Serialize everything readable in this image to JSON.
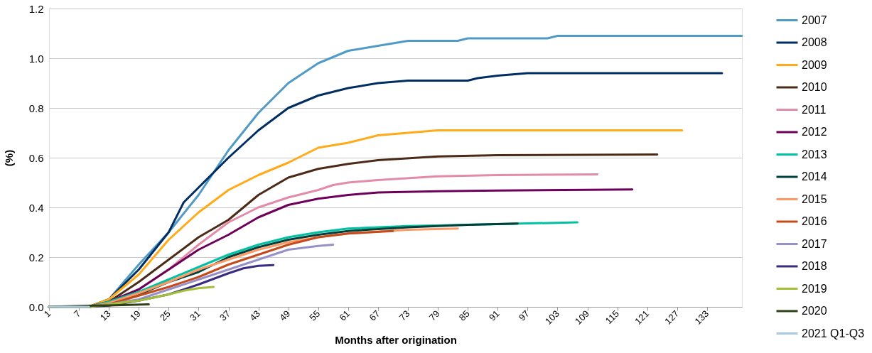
{
  "chart_data": {
    "type": "line",
    "xlabel": "Months after origination",
    "ylabel": "(%)",
    "xlim": [
      1,
      140
    ],
    "xticks": [
      1,
      7,
      13,
      19,
      25,
      31,
      37,
      43,
      49,
      55,
      61,
      67,
      73,
      79,
      85,
      91,
      97,
      103,
      109,
      115,
      121,
      127,
      133
    ],
    "ylim": [
      0,
      1.2
    ],
    "yticks": [
      {
        "value": 0,
        "label": "0.0"
      },
      {
        "value": 0.2,
        "label": "0.2"
      },
      {
        "value": 0.4,
        "label": "0.4"
      },
      {
        "value": 0.6,
        "label": "0.6"
      },
      {
        "value": 0.8,
        "label": "0.8"
      },
      {
        "value": 1.0,
        "label": "1.0"
      },
      {
        "value": 1.2,
        "label": "1.2"
      }
    ],
    "grid": "y",
    "legend": "right",
    "marker": "none",
    "line_style": "solid",
    "series": [
      {
        "name": "2007",
        "color": "#4f9bc6",
        "x": [
          1,
          9,
          13,
          19,
          25,
          31,
          37,
          43,
          49,
          55,
          61,
          67,
          73,
          83,
          85,
          101,
          103,
          140
        ],
        "values": [
          0,
          0,
          0.03,
          0.17,
          0.3,
          0.45,
          0.63,
          0.78,
          0.9,
          0.98,
          1.03,
          1.05,
          1.07,
          1.07,
          1.08,
          1.08,
          1.09,
          1.09
        ]
      },
      {
        "name": "2008",
        "color": "#002d62",
        "x": [
          1,
          9,
          13,
          19,
          25,
          28,
          31,
          34,
          37,
          43,
          49,
          55,
          61,
          67,
          73,
          85,
          87,
          91,
          97,
          136
        ],
        "values": [
          0,
          0,
          0.03,
          0.15,
          0.3,
          0.42,
          0.48,
          0.54,
          0.6,
          0.71,
          0.8,
          0.85,
          0.88,
          0.9,
          0.91,
          0.91,
          0.92,
          0.93,
          0.94,
          0.94
        ]
      },
      {
        "name": "2009",
        "color": "#ffab19",
        "x": [
          1,
          9,
          13,
          19,
          25,
          31,
          37,
          43,
          49,
          55,
          61,
          67,
          73,
          79,
          128
        ],
        "values": [
          0,
          0,
          0.03,
          0.13,
          0.27,
          0.38,
          0.47,
          0.53,
          0.58,
          0.64,
          0.66,
          0.69,
          0.7,
          0.71,
          0.71
        ]
      },
      {
        "name": "2010",
        "color": "#4b2a17",
        "x": [
          1,
          9,
          13,
          19,
          25,
          31,
          37,
          43,
          49,
          55,
          61,
          67,
          79,
          91,
          123
        ],
        "values": [
          0,
          0,
          0.02,
          0.1,
          0.19,
          0.28,
          0.35,
          0.45,
          0.52,
          0.555,
          0.575,
          0.59,
          0.605,
          0.61,
          0.613
        ]
      },
      {
        "name": "2011",
        "color": "#e28ca8",
        "x": [
          1,
          9,
          13,
          19,
          25,
          31,
          37,
          43,
          49,
          55,
          58,
          61,
          67,
          79,
          91,
          111
        ],
        "values": [
          0,
          0,
          0.02,
          0.07,
          0.15,
          0.25,
          0.34,
          0.4,
          0.44,
          0.47,
          0.49,
          0.5,
          0.51,
          0.525,
          0.53,
          0.533
        ]
      },
      {
        "name": "2012",
        "color": "#6d0059",
        "x": [
          1,
          9,
          13,
          19,
          25,
          31,
          37,
          43,
          49,
          55,
          61,
          67,
          79,
          91,
          118
        ],
        "values": [
          0,
          0,
          0.02,
          0.07,
          0.15,
          0.23,
          0.29,
          0.36,
          0.41,
          0.435,
          0.45,
          0.46,
          0.465,
          0.468,
          0.472
        ]
      },
      {
        "name": "2013",
        "color": "#00c2a2",
        "x": [
          1,
          9,
          13,
          19,
          25,
          31,
          37,
          43,
          49,
          55,
          61,
          73,
          85,
          107
        ],
        "values": [
          0,
          0,
          0.02,
          0.06,
          0.11,
          0.16,
          0.21,
          0.25,
          0.28,
          0.3,
          0.315,
          0.325,
          0.33,
          0.34
        ]
      },
      {
        "name": "2014",
        "color": "#003f3c",
        "x": [
          1,
          9,
          13,
          19,
          25,
          31,
          37,
          43,
          49,
          55,
          61,
          73,
          85,
          95
        ],
        "values": [
          0,
          0,
          0.01,
          0.05,
          0.1,
          0.14,
          0.2,
          0.24,
          0.27,
          0.29,
          0.305,
          0.32,
          0.33,
          0.335
        ]
      },
      {
        "name": "2015",
        "color": "#ff9966",
        "x": [
          1,
          9,
          13,
          19,
          25,
          31,
          37,
          43,
          49,
          55,
          61,
          73,
          83
        ],
        "values": [
          0,
          0,
          0.015,
          0.055,
          0.1,
          0.15,
          0.19,
          0.23,
          0.26,
          0.28,
          0.295,
          0.31,
          0.315
        ]
      },
      {
        "name": "2016",
        "color": "#c44a1a",
        "x": [
          1,
          9,
          13,
          19,
          25,
          31,
          37,
          43,
          49,
          55,
          61,
          70
        ],
        "values": [
          0,
          0,
          0.01,
          0.045,
          0.08,
          0.12,
          0.17,
          0.21,
          0.25,
          0.28,
          0.295,
          0.305
        ]
      },
      {
        "name": "2017",
        "color": "#9590c8",
        "x": [
          1,
          9,
          13,
          19,
          25,
          31,
          37,
          43,
          49,
          55,
          58
        ],
        "values": [
          0,
          0,
          0.01,
          0.03,
          0.07,
          0.11,
          0.15,
          0.19,
          0.23,
          0.245,
          0.25
        ]
      },
      {
        "name": "2018",
        "color": "#3a2a80",
        "x": [
          1,
          9,
          13,
          19,
          25,
          31,
          37,
          40,
          43,
          46
        ],
        "values": [
          0,
          0,
          0.005,
          0.025,
          0.05,
          0.09,
          0.135,
          0.155,
          0.165,
          0.168
        ]
      },
      {
        "name": "2019",
        "color": "#a2c037",
        "x": [
          1,
          9,
          13,
          19,
          25,
          28,
          31,
          34
        ],
        "values": [
          0,
          0,
          0.01,
          0.025,
          0.05,
          0.065,
          0.075,
          0.08
        ]
      },
      {
        "name": "2020",
        "color": "#2f4016",
        "x": [
          1,
          10,
          13,
          17,
          21
        ],
        "values": [
          0,
          0.005,
          0.006,
          0.008,
          0.01
        ]
      },
      {
        "name": "2021 Q1-Q3",
        "color": "#a8c8e0",
        "x": [
          1,
          5,
          9
        ],
        "values": [
          0,
          0,
          0
        ]
      }
    ]
  }
}
